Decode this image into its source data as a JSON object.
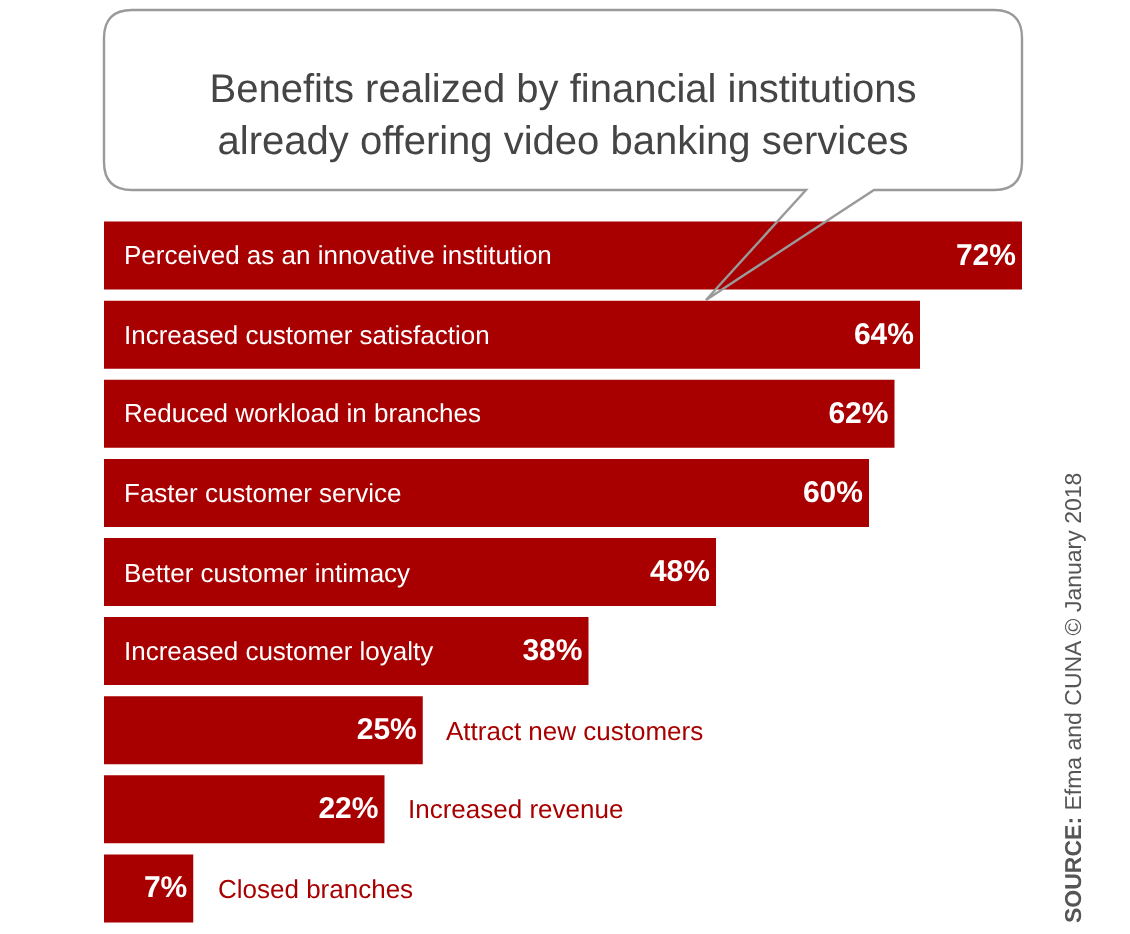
{
  "chart_data": {
    "type": "bar",
    "orientation": "horizontal",
    "title": "Benefits realized by financial institutions\nalready offering video banking services",
    "categories": [
      "Perceived as an innovative institution",
      "Increased customer satisfaction",
      "Reduced workload in branches",
      "Faster customer service",
      "Better customer intimacy",
      "Increased customer loyalty",
      "Attract new customers",
      "Increased revenue",
      "Closed branches"
    ],
    "values": [
      72,
      64,
      62,
      60,
      48,
      38,
      25,
      22,
      7
    ],
    "value_labels": [
      "72%",
      "64%",
      "62%",
      "60%",
      "48%",
      "38%",
      "25%",
      "22%",
      "7%"
    ],
    "color": "#a80000",
    "annotations": [
      "SOURCE: Efma and CUNA © January 2018"
    ]
  }
}
